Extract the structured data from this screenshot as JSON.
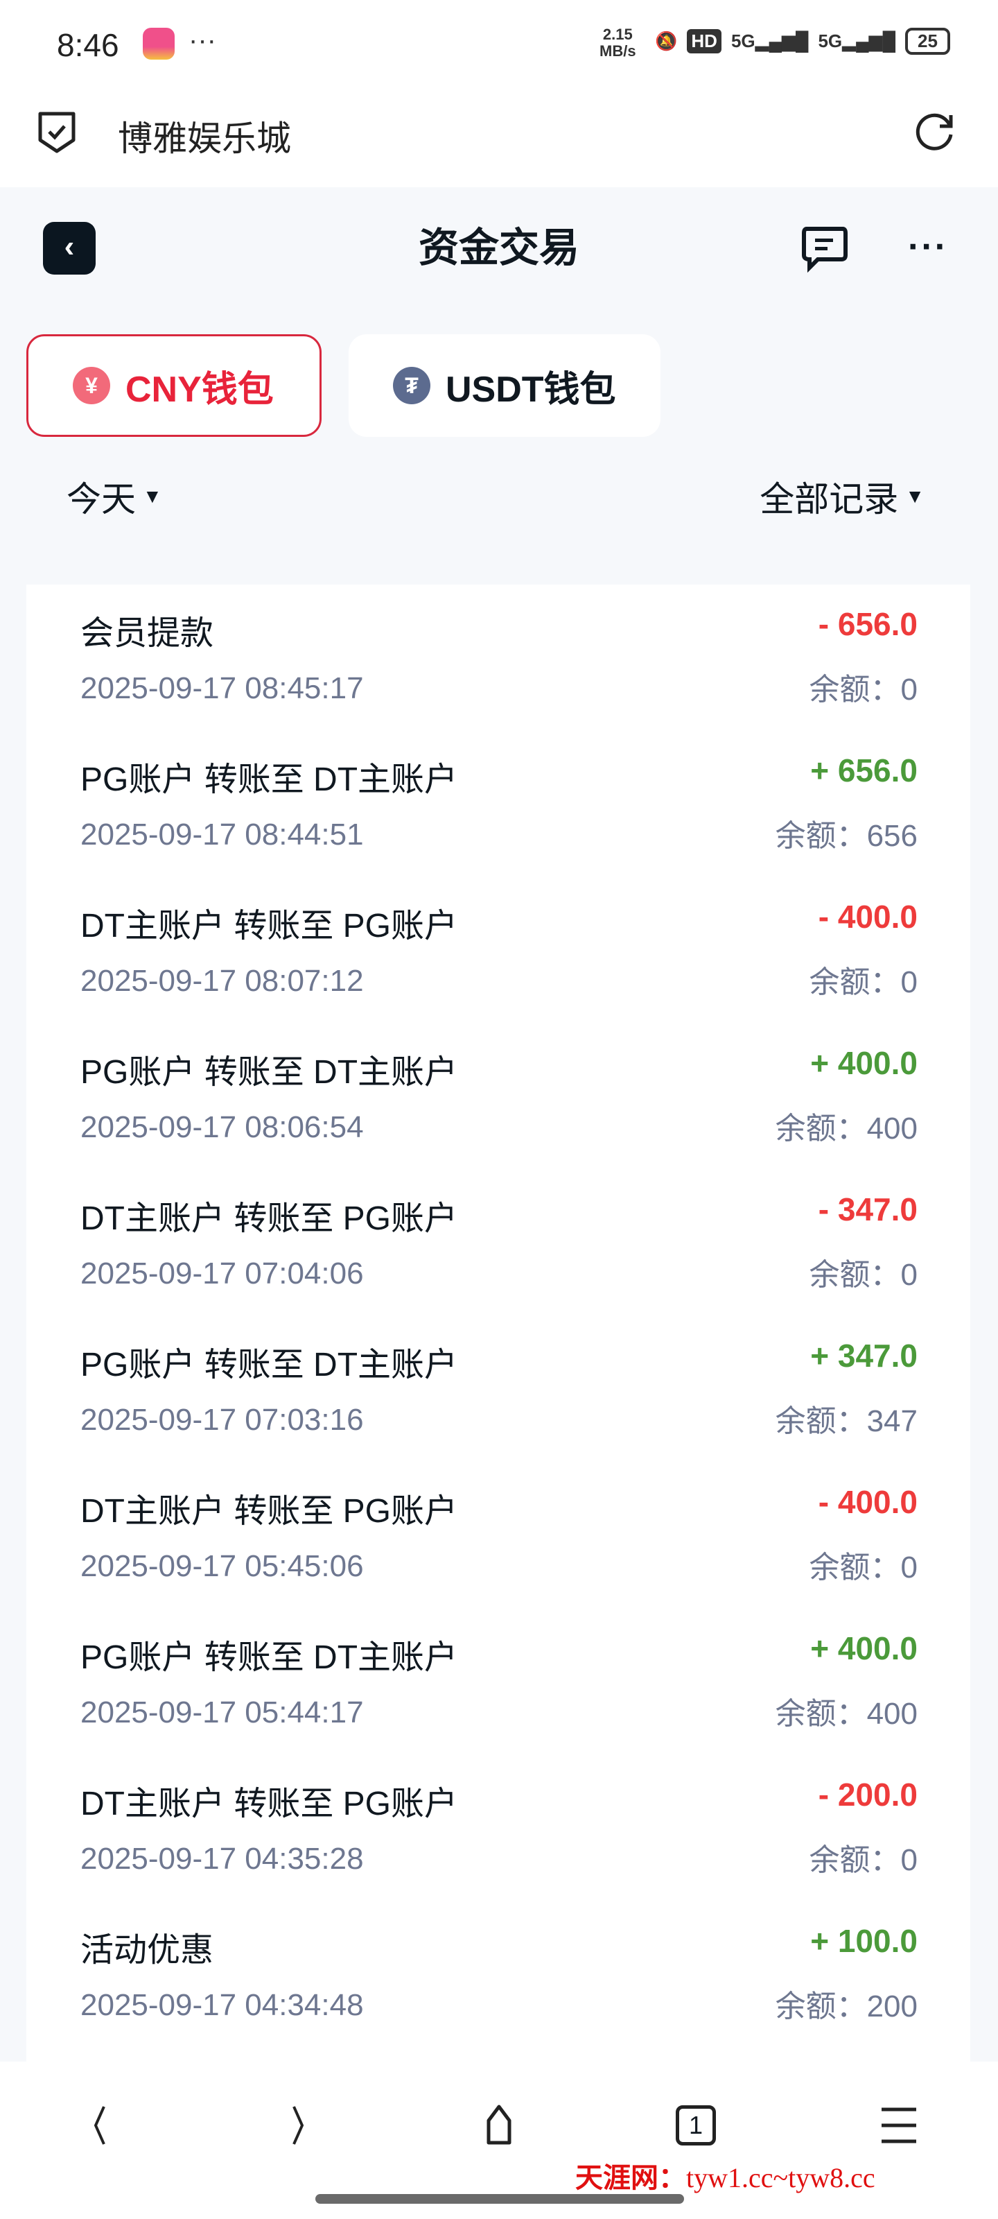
{
  "status_bar": {
    "time": "8:46",
    "more": "···",
    "speed_value": "2.15",
    "speed_unit": "MB/s",
    "hd": "HD",
    "net1": "5G",
    "net2": "5G",
    "battery": "25"
  },
  "browser": {
    "site_title": "博雅娱乐城"
  },
  "header": {
    "title": "资金交易"
  },
  "wallet_tabs": [
    {
      "label": "CNY钱包",
      "icon": "yuan-icon",
      "active": true,
      "color": "#f26a7a"
    },
    {
      "label": "USDT钱包",
      "icon": "tether-icon",
      "active": false,
      "color": "#5c6b8f"
    }
  ],
  "filters": {
    "date": "今天",
    "type": "全部记录"
  },
  "colors": {
    "accent": "#e8233a",
    "negative": "#ee3b3b",
    "positive": "#4b9a3a"
  },
  "transactions": [
    {
      "title": "会员提款",
      "time": "2025-09-17 08:45:17",
      "amount": "- 656.0",
      "sign": "neg",
      "balance": "余额：0"
    },
    {
      "title": "PG账户 转账至 DT主账户",
      "time": "2025-09-17 08:44:51",
      "amount": "+ 656.0",
      "sign": "pos",
      "balance": "余额：656"
    },
    {
      "title": "DT主账户 转账至 PG账户",
      "time": "2025-09-17 08:07:12",
      "amount": "- 400.0",
      "sign": "neg",
      "balance": "余额：0"
    },
    {
      "title": "PG账户 转账至 DT主账户",
      "time": "2025-09-17 08:06:54",
      "amount": "+ 400.0",
      "sign": "pos",
      "balance": "余额：400"
    },
    {
      "title": "DT主账户 转账至 PG账户",
      "time": "2025-09-17 07:04:06",
      "amount": "- 347.0",
      "sign": "neg",
      "balance": "余额：0"
    },
    {
      "title": "PG账户 转账至 DT主账户",
      "time": "2025-09-17 07:03:16",
      "amount": "+ 347.0",
      "sign": "pos",
      "balance": "余额：347"
    },
    {
      "title": "DT主账户 转账至 PG账户",
      "time": "2025-09-17 05:45:06",
      "amount": "- 400.0",
      "sign": "neg",
      "balance": "余额：0"
    },
    {
      "title": "PG账户 转账至 DT主账户",
      "time": "2025-09-17 05:44:17",
      "amount": "+ 400.0",
      "sign": "pos",
      "balance": "余额：400"
    },
    {
      "title": "DT主账户 转账至 PG账户",
      "time": "2025-09-17 04:35:28",
      "amount": "- 200.0",
      "sign": "neg",
      "balance": "余额：0"
    },
    {
      "title": "活动优惠",
      "time": "2025-09-17 04:34:48",
      "amount": "+ 100.0",
      "sign": "pos",
      "balance": "余额：200"
    }
  ],
  "bottom_nav": {
    "tab_count": "1"
  },
  "watermark": {
    "name": "天涯网：",
    "urls": "tyw1.cc~tyw8.cc"
  }
}
